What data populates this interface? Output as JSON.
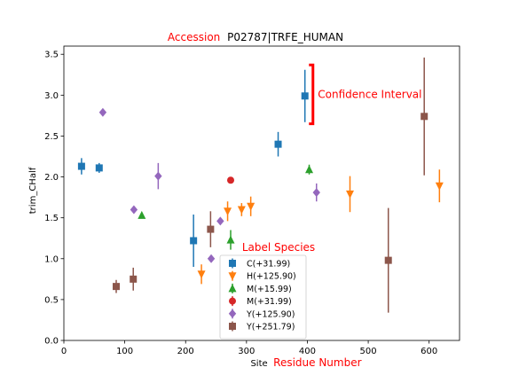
{
  "title": {
    "prefix": "Accession",
    "text": "P02787|TRFE_HUMAN",
    "prefix_color": "#ff0000"
  },
  "chart_data": {
    "type": "scatter",
    "xlabel": {
      "prefix": "Site",
      "annotation": "Residue Number"
    },
    "ylabel": "trim_CHalf",
    "xlim": [
      0,
      650
    ],
    "ylim": [
      0.0,
      3.6
    ],
    "xticks": [
      0,
      100,
      200,
      300,
      400,
      500,
      600
    ],
    "yticks": [
      0.0,
      0.5,
      1.0,
      1.5,
      2.0,
      2.5,
      3.0,
      3.5
    ],
    "grid": false,
    "legend": {
      "title": "Label Species",
      "placement": "lower center"
    },
    "annotation": {
      "text": "Confidence Interval",
      "color": "#ff0000",
      "interval": [
        2.65,
        3.37
      ],
      "x": 407
    },
    "series": [
      {
        "name": "C(+31.99)",
        "color": "#1f77b4",
        "marker": "square",
        "points": [
          [
            29,
            2.13,
            0.1
          ],
          [
            58,
            2.11,
            0.06
          ],
          [
            213,
            1.22,
            0.32
          ],
          [
            352,
            2.4,
            0.15
          ],
          [
            396,
            2.99,
            0.32
          ]
        ]
      },
      {
        "name": "H(+125.90)",
        "color": "#ff7f0e",
        "marker": "triangle-down",
        "points": [
          [
            226,
            0.81,
            0.12
          ],
          [
            269,
            1.58,
            0.12
          ],
          [
            292,
            1.6,
            0.08
          ],
          [
            307,
            1.64,
            0.12
          ],
          [
            470,
            1.79,
            0.22
          ],
          [
            617,
            1.89,
            0.2
          ]
        ]
      },
      {
        "name": "M(+15.99)",
        "color": "#2ca02c",
        "marker": "triangle-up",
        "points": [
          [
            128,
            1.53,
            0.0
          ],
          [
            274,
            1.23,
            0.12
          ],
          [
            403,
            2.09,
            0.06
          ]
        ]
      },
      {
        "name": "M(+31.99)",
        "color": "#d62728",
        "marker": "circle",
        "points": [
          [
            274,
            1.96,
            0.0
          ]
        ]
      },
      {
        "name": "Y(+125.90)",
        "color": "#9467bd",
        "marker": "diamond",
        "points": [
          [
            64,
            2.79,
            0.0
          ],
          [
            115,
            1.6,
            0.0
          ],
          [
            155,
            2.01,
            0.16
          ],
          [
            242,
            1.0,
            0.0
          ],
          [
            257,
            1.46,
            0.0
          ],
          [
            415,
            1.81,
            0.11
          ]
        ]
      },
      {
        "name": "Y(+251.79)",
        "color": "#8c564b",
        "marker": "square",
        "points": [
          [
            86,
            0.66,
            0.08
          ],
          [
            114,
            0.75,
            0.14
          ],
          [
            241,
            1.36,
            0.22
          ],
          [
            533,
            0.98,
            0.64
          ],
          [
            592,
            2.74,
            0.72
          ]
        ]
      }
    ]
  }
}
